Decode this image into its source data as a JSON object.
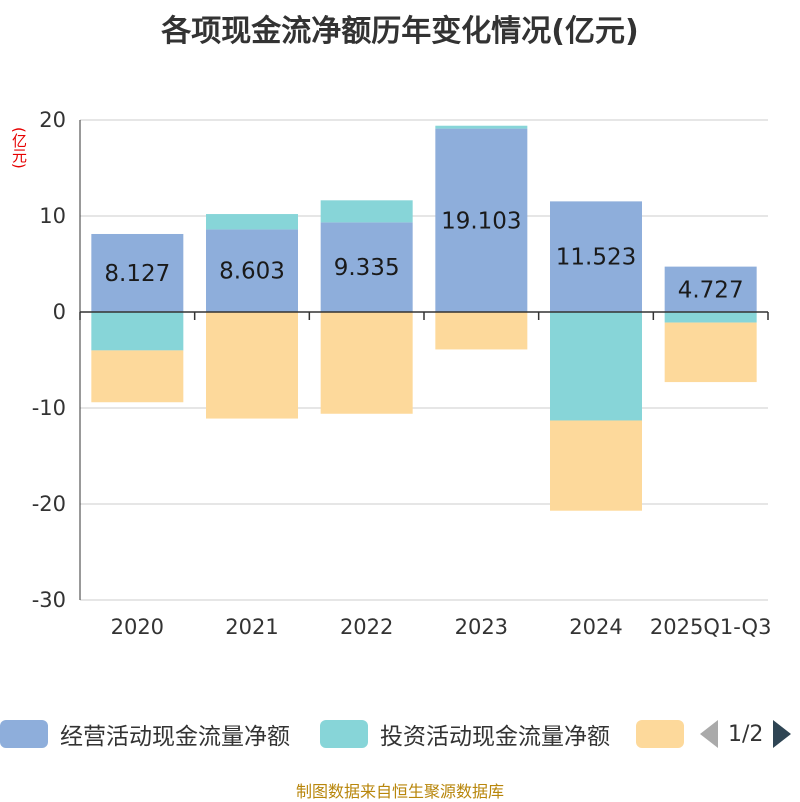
{
  "chart_data": {
    "type": "bar",
    "stacked": true,
    "title": "各项现金流净额历年变化情况(亿元)",
    "ylabel": "(亿元)",
    "ylim": [
      -30,
      20
    ],
    "yticks": [
      20,
      10,
      0,
      -10,
      -20,
      -30
    ],
    "categories": [
      "2020",
      "2021",
      "2022",
      "2023",
      "2024",
      "2025Q1-Q3"
    ],
    "series": [
      {
        "name": "经营活动现金流量净额",
        "color": "#8eaedb",
        "values": [
          8.127,
          8.603,
          9.335,
          19.103,
          11.523,
          4.727
        ],
        "labels": [
          "8.127",
          "8.603",
          "9.335",
          "19.103",
          "11.523",
          "4.727"
        ]
      },
      {
        "name": "投资活动现金流量净额",
        "color": "#87d5d8",
        "values": [
          -4.0,
          1.6,
          2.3,
          0.3,
          -11.3,
          -1.1
        ]
      },
      {
        "name": "",
        "color": "#fdd99b",
        "values": [
          -5.4,
          -11.1,
          -10.6,
          -3.9,
          -9.4,
          -6.2
        ]
      }
    ],
    "legend_position": "bottom",
    "grid": true
  },
  "legend": {
    "items": [
      {
        "label": "经营活动现金流量净额",
        "color": "#8eaedb"
      },
      {
        "label": "投资活动现金流量净额",
        "color": "#87d5d8"
      },
      {
        "label": "",
        "color": "#fdd99b"
      }
    ],
    "page_indicator": "1/2"
  },
  "source": "制图数据来自恒生聚源数据库"
}
